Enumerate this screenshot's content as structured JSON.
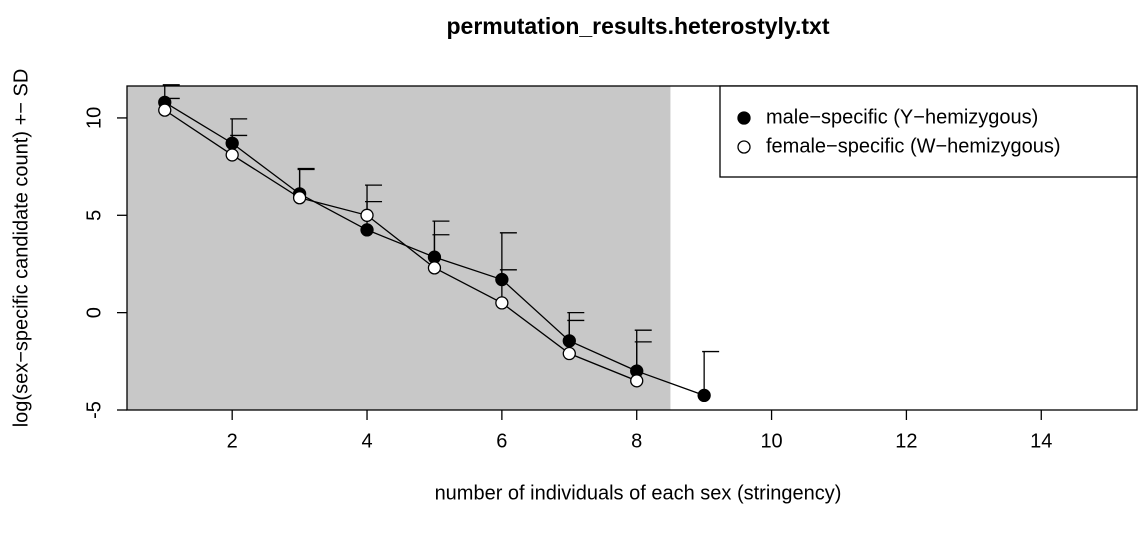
{
  "chart_data": {
    "type": "line",
    "title": "permutation_results.heterostyly.txt",
    "xlabel": "number of individuals of each sex (stringency)",
    "ylabel": "log(sex−specific candidate count) +− SD",
    "x": [
      1,
      2,
      3,
      4,
      5,
      6,
      7,
      8,
      9
    ],
    "series": [
      {
        "name": "male−specific (Y−hemizygous)",
        "color": "#000000",
        "marker": "filled",
        "values": [
          10.8,
          8.7,
          6.1,
          4.25,
          2.85,
          1.7,
          -1.45,
          -3.0,
          -4.25
        ],
        "errors": [
          0.9,
          1.25,
          1.3,
          2.3,
          1.85,
          2.4,
          1.45,
          2.1,
          2.25
        ]
      },
      {
        "name": "female−specific (W−hemizygous)",
        "color": "#000000",
        "marker": "open",
        "values": [
          10.4,
          8.1,
          5.9,
          5.0,
          2.3,
          0.5,
          -2.1,
          -3.5,
          null
        ],
        "errors": [
          0.6,
          1.0,
          1.45,
          0.7,
          1.7,
          1.7,
          1.7,
          2.0,
          null
        ]
      }
    ],
    "shade_xmax": 8.5,
    "shade_color": "#c8c8c8",
    "xlim": [
      0.44,
      15.42
    ],
    "ylim": [
      -5,
      11.64
    ],
    "xticks": [
      2,
      4,
      6,
      8,
      10,
      12,
      14
    ],
    "yticks": [
      -5,
      0,
      5,
      10
    ],
    "legend": "topright"
  }
}
